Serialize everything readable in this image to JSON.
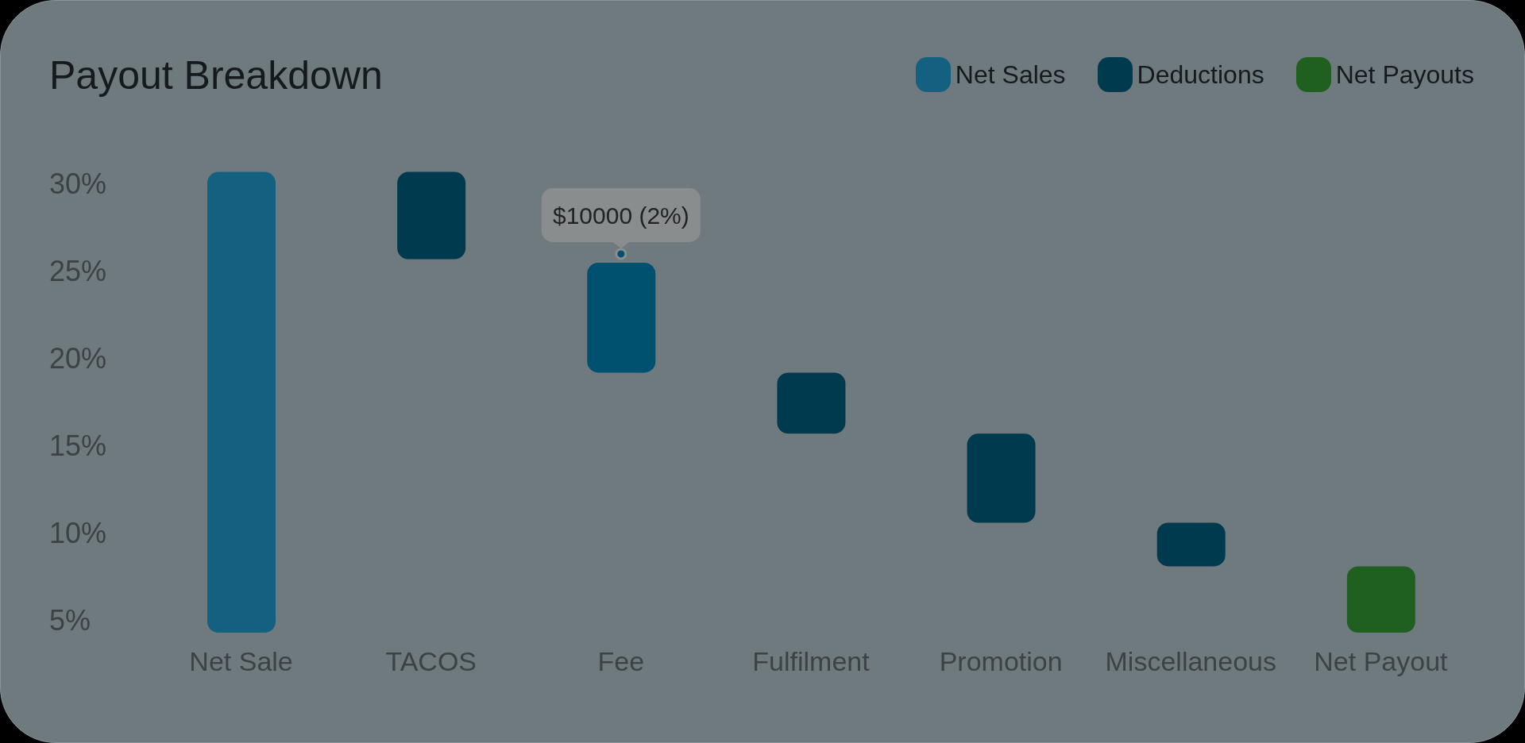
{
  "chart_data": {
    "type": "bar",
    "title": "Payout Breakdown",
    "categories": [
      "Net Sale",
      "TACOS",
      "Fee",
      "Fulfilment",
      "Promotion",
      "Miscellaneous",
      "Net Payout"
    ],
    "series": [
      {
        "name": "Net Sales",
        "color": "#136080",
        "values": [
          26.4,
          null,
          null,
          null,
          null,
          null,
          null
        ],
        "base": [
          4.3,
          null,
          null,
          null,
          null,
          null,
          null
        ]
      },
      {
        "name": "Deductions",
        "color": "#003a4f",
        "colors": [
          "#003a4f",
          "#003a4f",
          "#005070",
          "#003a4f",
          "#003a4f",
          "#003a4f",
          "#003a4f"
        ],
        "values": [
          null,
          5.0,
          6.3,
          3.5,
          5.1,
          2.5,
          null
        ],
        "base": [
          null,
          25.7,
          19.2,
          15.7,
          10.6,
          8.1,
          null
        ]
      },
      {
        "name": "Net Payouts",
        "color": "#1f6020",
        "values": [
          null,
          null,
          null,
          null,
          null,
          null,
          3.8
        ],
        "base": [
          null,
          null,
          null,
          null,
          null,
          null,
          4.3
        ]
      }
    ],
    "ylim": [
      4.3,
      31
    ],
    "yticks": [
      {
        "value": 5,
        "label": "5%"
      },
      {
        "value": 10,
        "label": "10%"
      },
      {
        "value": 15,
        "label": "15%"
      },
      {
        "value": 20,
        "label": "20%"
      },
      {
        "value": 25,
        "label": "25%"
      },
      {
        "value": 30,
        "label": "30%"
      }
    ],
    "grid": false,
    "legend": "top right",
    "annotations": [
      {
        "text": "$10000 (2%)",
        "x": "Fee",
        "y": 25.5
      }
    ]
  }
}
